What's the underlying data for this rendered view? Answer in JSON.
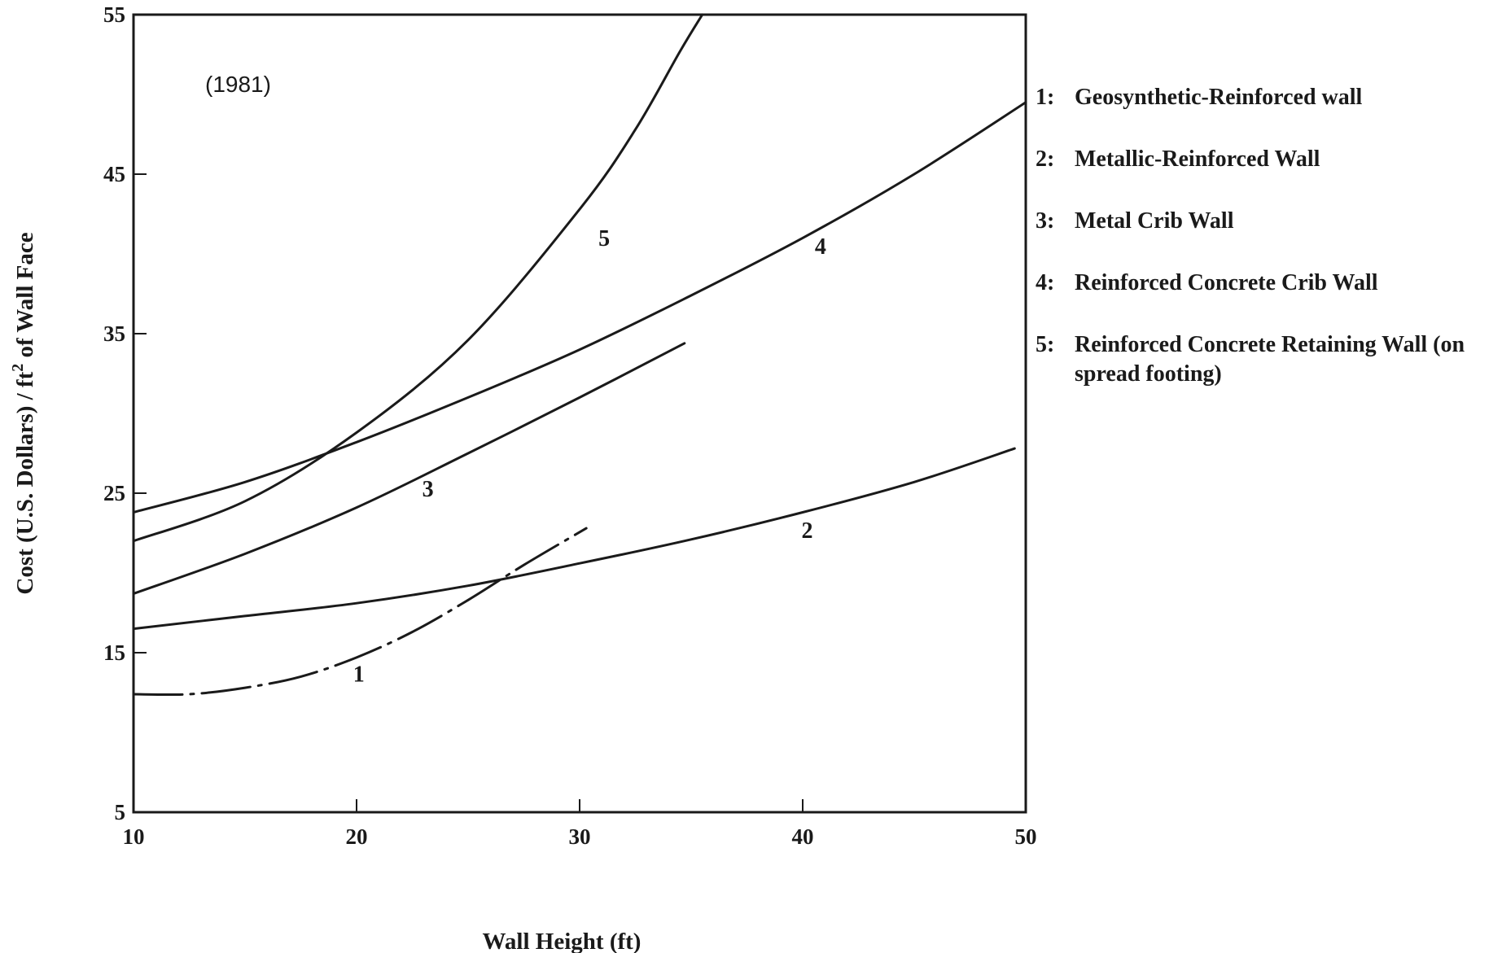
{
  "chart_data": {
    "type": "line",
    "title": "",
    "annotation": "(1981)",
    "xlabel": "Wall  Height (ft)",
    "ylabel": "Cost (U.S. Dollars) / ft",
    "ylabel_sup": "2",
    "ylabel_tail": " of Wall Face",
    "xlim": [
      10,
      50
    ],
    "ylim": [
      5,
      55
    ],
    "xticks": [
      "10",
      "20",
      "30",
      "40",
      "50"
    ],
    "yticks": [
      "5",
      "15",
      "25",
      "35",
      "45",
      "55"
    ],
    "grid": false,
    "legend_position": "right",
    "series": [
      {
        "name": "1",
        "label": "1",
        "style": "dash-dot",
        "x": [
          10,
          12.5,
          15,
          17.5,
          20,
          22.5,
          25,
          27.5,
          30.3
        ],
        "y": [
          12.4,
          12.4,
          12.8,
          13.5,
          14.7,
          16.3,
          18.3,
          20.5,
          22.8
        ]
      },
      {
        "name": "2",
        "label": "2",
        "x": [
          10,
          15,
          20,
          25,
          30,
          35,
          40,
          45,
          49.5
        ],
        "y": [
          16.5,
          17.3,
          18.1,
          19.2,
          20.6,
          22.1,
          23.8,
          25.7,
          27.8
        ]
      },
      {
        "name": "3",
        "label": "3",
        "x": [
          10,
          15,
          20,
          25,
          30,
          34.7
        ],
        "y": [
          18.7,
          21.2,
          24.1,
          27.5,
          31.0,
          34.4
        ]
      },
      {
        "name": "4",
        "label": "4",
        "x": [
          10,
          15,
          20,
          25,
          30,
          35,
          40,
          45,
          50
        ],
        "y": [
          23.8,
          25.7,
          28.2,
          31.0,
          34.0,
          37.4,
          41.0,
          45.0,
          49.5
        ]
      },
      {
        "name": "5",
        "label": "5",
        "x": [
          10,
          15,
          20,
          25,
          30,
          32.5,
          34.5,
          35.5
        ],
        "y": [
          22.0,
          24.5,
          28.8,
          34.6,
          42.8,
          47.8,
          52.7,
          55.0
        ]
      }
    ],
    "curve_labels": [
      {
        "text": "1",
        "x": 20.1,
        "y": 13.2
      },
      {
        "text": "2",
        "x": 40.2,
        "y": 22.2
      },
      {
        "text": "3",
        "x": 23.2,
        "y": 24.8
      },
      {
        "text": "4",
        "x": 40.8,
        "y": 40.0
      },
      {
        "text": "5",
        "x": 31.1,
        "y": 40.5
      }
    ],
    "legend": [
      {
        "num": "1:",
        "text": "Geosynthetic-Reinforced wall"
      },
      {
        "num": "2:",
        "text": "Metallic-Reinforced Wall"
      },
      {
        "num": "3:",
        "text": "Metal Crib Wall"
      },
      {
        "num": "4:",
        "text": "Reinforced Concrete Crib Wall"
      },
      {
        "num": "5:",
        "text": "Reinforced Concrete Retaining Wall (on spread footing)"
      }
    ],
    "colors": {
      "line": "#1a1a1a",
      "background": "#ffffff"
    }
  }
}
